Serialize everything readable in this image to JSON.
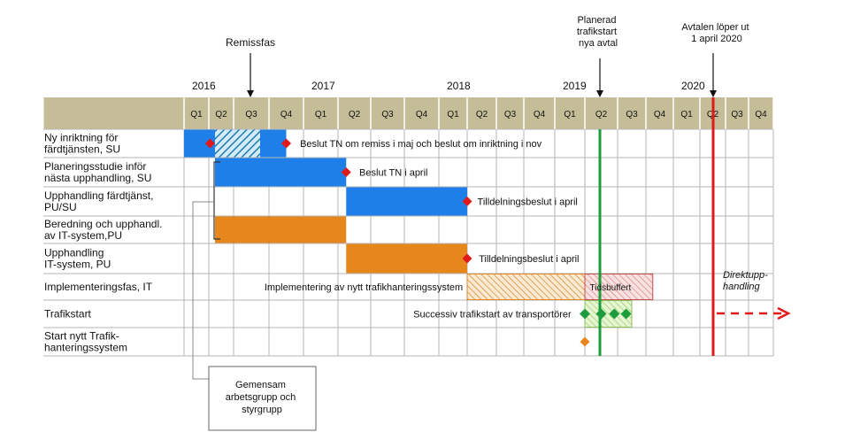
{
  "years": [
    {
      "label": "2016",
      "q": 0
    },
    {
      "label": "2017",
      "q": 4
    },
    {
      "label": "2018",
      "q": 8
    },
    {
      "label": "2019",
      "q": 12
    },
    {
      "label": "2020",
      "q": 16
    }
  ],
  "quarters": [
    "Q1",
    "Q2",
    "Q3",
    "Q4",
    "Q1",
    "Q2",
    "Q3",
    "Q4",
    "Q1",
    "Q2",
    "Q3",
    "Q4",
    "Q1",
    "Q2",
    "Q3",
    "Q4",
    "Q1",
    "Q2",
    "Q3",
    "Q4"
  ],
  "rows": [
    {
      "lines": [
        "Ny inriktning för",
        "färdtjänsten, SU"
      ]
    },
    {
      "lines": [
        "Planeringsstudie inför",
        "nästa upphandling, SU"
      ]
    },
    {
      "lines": [
        "Upphandling färdtjänst,",
        "PU/SU"
      ]
    },
    {
      "lines": [
        "Beredning och upphandl.",
        "av IT-system,PU"
      ]
    },
    {
      "lines": [
        "Upphandling",
        "IT-system, PU"
      ]
    },
    {
      "lines": [
        "Implementeringsfas,  IT"
      ]
    },
    {
      "lines": [
        "Trafikstart"
      ]
    },
    {
      "lines": [
        "Start nytt Trafik-",
        "hanteringssystem"
      ]
    }
  ],
  "bars": [
    {
      "row": 0,
      "start": 0,
      "end": 1.25,
      "fill": "blue"
    },
    {
      "row": 0,
      "start": 1.25,
      "end": 2.75,
      "fill": "blue-hatch"
    },
    {
      "row": 0,
      "start": 2.75,
      "end": 3.5,
      "fill": "blue"
    },
    {
      "row": 1,
      "start": 1.25,
      "end": 5.25,
      "fill": "blue"
    },
    {
      "row": 2,
      "start": 5.25,
      "end": 9,
      "fill": "blue"
    },
    {
      "row": 3,
      "start": 1.25,
      "end": 5.25,
      "fill": "orange"
    },
    {
      "row": 4,
      "start": 5.25,
      "end": 9,
      "fill": "orange"
    },
    {
      "row": 5,
      "start": 9,
      "end": 13,
      "fill": "orange-hatch"
    },
    {
      "row": 5,
      "start": 13,
      "end": 15.25,
      "fill": "red-hatch"
    },
    {
      "row": 6,
      "start": 13,
      "end": 14.5,
      "fill": "green-hatch"
    }
  ],
  "milestones": [
    {
      "row": 0,
      "q": 1.05,
      "color": "#e0191a"
    },
    {
      "row": 0,
      "q": 3.5,
      "color": "#e0191a"
    },
    {
      "row": 1,
      "q": 5.25,
      "color": "#e0191a"
    },
    {
      "row": 2,
      "q": 9,
      "color": "#e0191a"
    },
    {
      "row": 4,
      "q": 9,
      "color": "#e0191a"
    },
    {
      "row": 6,
      "q": 13,
      "color": "#1c9c3c"
    },
    {
      "row": 6,
      "q": 13.5,
      "color": "#1c9c3c"
    },
    {
      "row": 6,
      "q": 13.9,
      "color": "#1c9c3c"
    },
    {
      "row": 6,
      "q": 14.3,
      "color": "#1c9c3c"
    },
    {
      "row": 7,
      "q": 13,
      "color": "#e8861e"
    }
  ],
  "bar_labels": [
    {
      "row": 0,
      "q": 3.9,
      "text": "Beslut TN om remiss i maj och beslut om inriktning i nov",
      "anchor": "start"
    },
    {
      "row": 1,
      "q": 5.65,
      "text": "Beslut TN i april",
      "anchor": "start"
    },
    {
      "row": 2,
      "q": 9.35,
      "text": "Tilldelningsbeslut i april",
      "anchor": "start"
    },
    {
      "row": 4,
      "q": 9.4,
      "text": "Tilldelningsbeslut i april",
      "anchor": "start"
    },
    {
      "row": 5,
      "q": 8.85,
      "text": "Implementering av nytt trafikhanteringssystem",
      "anchor": "end"
    },
    {
      "row": 5,
      "q": 13.15,
      "text": "Tidsbuffert",
      "anchor": "start",
      "size": 10
    },
    {
      "row": 6,
      "q": 12.55,
      "text": "Successiv trafikstart av transportörer",
      "anchor": "end"
    }
  ],
  "annotations": {
    "remissfas": {
      "text": "Remissfas",
      "q": 2.25
    },
    "planerad": {
      "lines": [
        "Planerad",
        "trafikstart",
        "nya avtal"
      ],
      "q": 13
    },
    "avtalen": {
      "lines": [
        "Avtalen löper ut",
        "1 april 2020"
      ],
      "q": 16.75
    },
    "direktupphandling": {
      "lines": [
        "Direktupp-",
        "handling"
      ]
    },
    "gemensam": {
      "lines": [
        "Gemensam",
        "arbetsgrupp och",
        "styrgrupp"
      ]
    }
  },
  "colors": {
    "header_bg": "#c4bd97",
    "blue": "#1f7fe8",
    "orange": "#e8861e",
    "green_line": "#1c9c3c",
    "red_line": "#e0191a",
    "grid": "#b5b5b5"
  }
}
